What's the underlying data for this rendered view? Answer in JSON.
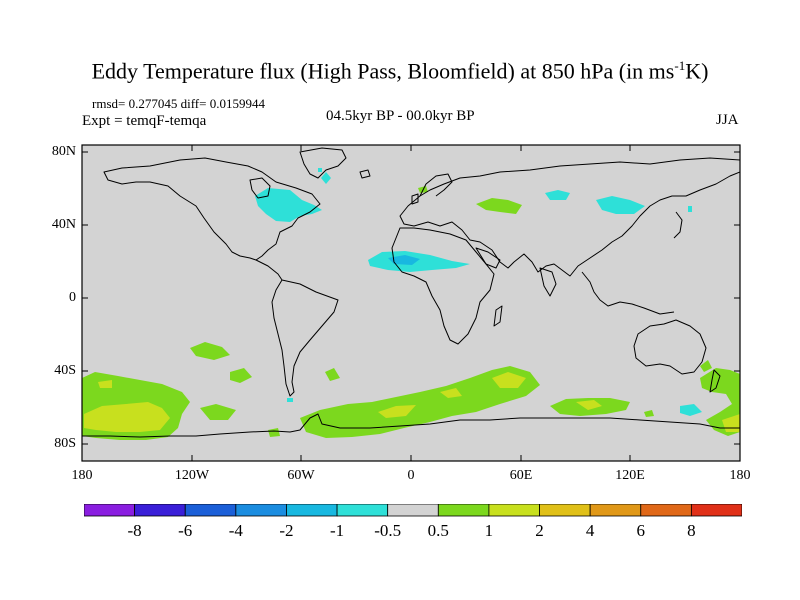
{
  "title": {
    "main": "Eddy Temperature flux (High Pass, Bloomfield) at 850 hPa (in ms",
    "sup": "-1",
    "tail": "K)"
  },
  "stats": "rmsd= 0.277045 diff= 0.0159944",
  "experiment": "Expt = temqF-temqa",
  "period": "04.5kyr BP - 00.0kyr BP",
  "season": "JJA",
  "lat_ticks": [
    "80N",
    "40N",
    "0",
    "40S",
    "80S"
  ],
  "lon_ticks": [
    "180",
    "120W",
    "60W",
    "0",
    "60E",
    "120E",
    "180"
  ],
  "colorbar": {
    "labels": [
      "-8",
      "-6",
      "-4",
      "-2",
      "-1",
      "-0.5",
      "0.5",
      "1",
      "2",
      "4",
      "6",
      "8"
    ],
    "colors": [
      "#8a1ee0",
      "#3a1fd8",
      "#1b5fd8",
      "#1b8de0",
      "#18b8e0",
      "#2ee0d8",
      "#d3d3d3",
      "#7cd81e",
      "#c8e01e",
      "#e0c018",
      "#e09818",
      "#e06818",
      "#e03018"
    ]
  },
  "colors": {
    "land_bg": "#d3d3d3",
    "neg_light": "#2ee0d8",
    "neg_mid": "#18b8e0",
    "pos_light": "#7cd81e",
    "pos_mid": "#c8e01e",
    "pos_strong": "#e0c018"
  }
}
